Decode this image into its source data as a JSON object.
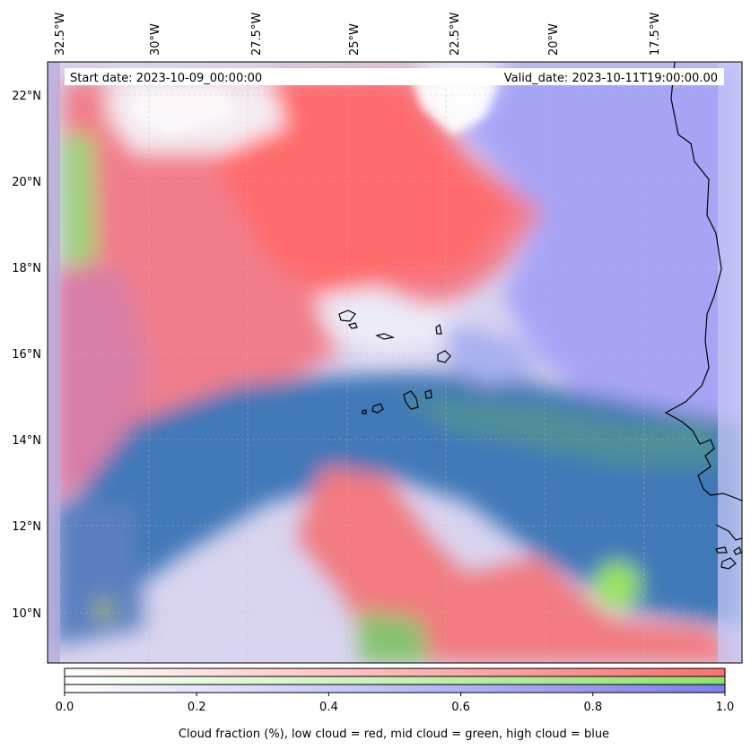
{
  "map": {
    "start_date": "Start date: 2023-10-09_00:00:00",
    "valid_date": "Valid_date: 2023-10-11T19:00:00.00",
    "lon_ticks": [
      "32.5°W",
      "30°W",
      "27.5°W",
      "25°W",
      "22.5°W",
      "20°W",
      "17.5°W"
    ],
    "lat_ticks": [
      "22°N",
      "20°N",
      "18°N",
      "16°N",
      "14°N",
      "12°N",
      "10°N"
    ],
    "layer_colors": {
      "low_cloud": "#ff6f6f",
      "mid_cloud": "#8ee26a",
      "high_cloud": "#7d7df2",
      "blend": "#3f78b8"
    }
  },
  "colorbar": {
    "tick_labels": [
      "0.0",
      "0.2",
      "0.4",
      "0.6",
      "0.8",
      "1.0"
    ],
    "label": "Cloud fraction (%), low cloud = red, mid cloud = green, high cloud = blue",
    "range": [
      0,
      1
    ]
  }
}
